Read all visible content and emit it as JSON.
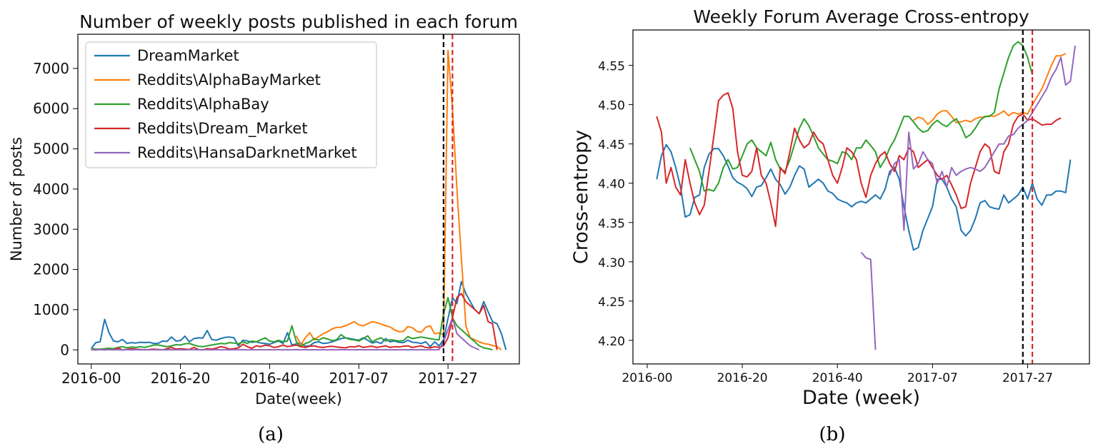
{
  "chart_data": [
    {
      "type": "line",
      "title": "Number of weekly posts published in each forum",
      "xlabel": "Date(week)",
      "ylabel": "Number of posts",
      "caption": "(a)",
      "x_ticks": [
        "2016-00",
        "2016-20",
        "2016-40",
        "2017-07",
        "2017-27"
      ],
      "y_ticks": [
        "0",
        "1000",
        "2000",
        "3000",
        "4000",
        "5000",
        "6000",
        "7000"
      ],
      "ylim": [
        -350,
        7850
      ],
      "x_range_weeks": [
        -3,
        96
      ],
      "x_index_note": "weeks counted from 2016-00; 2017-07 = week 60, 2017-27 = week 80",
      "vlines": [
        {
          "week": 79,
          "color": "#000000"
        },
        {
          "week": 81,
          "color": "#d62728"
        }
      ],
      "legend_position": "top-left",
      "grid": false,
      "series": [
        {
          "name": "DreamMarket",
          "color": "#1f77b4",
          "x_start": 0,
          "values": [
            30,
            180,
            200,
            760,
            420,
            220,
            200,
            260,
            160,
            180,
            170,
            190,
            180,
            190,
            160,
            160,
            220,
            210,
            320,
            220,
            230,
            340,
            200,
            280,
            300,
            290,
            480,
            260,
            240,
            280,
            310,
            320,
            300,
            100,
            240,
            220,
            190,
            200,
            170,
            160,
            140,
            180,
            220,
            160,
            430,
            120,
            150,
            170,
            90,
            100,
            180,
            200,
            160,
            170,
            200,
            240,
            280,
            300,
            280,
            260,
            240,
            300,
            240,
            170,
            200,
            160,
            280,
            200,
            220,
            190,
            180,
            240,
            190,
            180,
            160,
            200,
            80,
            200,
            100,
            250,
            780,
            1300,
            1150,
            1700,
            1400,
            1200,
            1000,
            900,
            1200,
            950,
            700,
            650,
            400,
            0
          ]
        },
        {
          "name": "Reddits\\AlphaBayMarket",
          "color": "#ff7f0e",
          "x_start": 46,
          "values": [
            350,
            120,
            300,
            430,
            250,
            330,
            400,
            450,
            520,
            560,
            560,
            600,
            650,
            700,
            620,
            600,
            650,
            700,
            680,
            640,
            600,
            570,
            500,
            450,
            460,
            580,
            550,
            460,
            440,
            560,
            600,
            400,
            420,
            380,
            7450,
            6000,
            4000,
            2300,
            600,
            300,
            250,
            200,
            160,
            140,
            110,
            80,
            0
          ]
        },
        {
          "name": "Reddits\\AlphaBay",
          "color": "#2ca02c",
          "x_start": 0,
          "values": [
            30,
            20,
            20,
            30,
            40,
            30,
            60,
            80,
            50,
            70,
            60,
            80,
            60,
            90,
            120,
            120,
            100,
            80,
            100,
            130,
            120,
            150,
            160,
            120,
            90,
            80,
            100,
            120,
            140,
            160,
            150,
            180,
            170,
            150,
            200,
            160,
            220,
            200,
            250,
            300,
            220,
            200,
            240,
            200,
            220,
            600,
            200,
            80,
            160,
            200,
            280,
            240,
            300,
            270,
            230,
            250,
            380,
            300,
            260,
            250,
            220,
            280,
            350,
            200,
            260,
            300,
            220,
            250,
            240,
            220,
            230,
            330,
            280,
            300,
            320,
            300,
            280,
            260,
            250,
            900,
            1300,
            800,
            600,
            500,
            400,
            300,
            200,
            100,
            50,
            30,
            0
          ]
        },
        {
          "name": "Reddits\\Dream_Market",
          "color": "#d62728",
          "x_start": 0,
          "values": [
            10,
            0,
            10,
            0,
            10,
            0,
            50,
            0,
            10,
            30,
            20,
            10,
            0,
            10,
            20,
            10,
            0,
            30,
            60,
            20,
            30,
            20,
            10,
            60,
            10,
            0,
            30,
            20,
            40,
            80,
            60,
            20,
            30,
            50,
            140,
            80,
            40,
            100,
            80,
            120,
            100,
            60,
            80,
            120,
            80,
            100,
            120,
            80,
            60,
            90,
            100,
            70,
            60,
            80,
            90,
            70,
            60,
            50,
            80,
            70,
            100,
            60,
            80,
            90,
            60,
            80,
            100,
            60,
            80,
            70,
            90,
            100,
            60,
            80,
            100,
            60,
            50,
            80,
            60,
            100,
            300,
            800,
            1300,
            1400,
            1200,
            1100,
            1000,
            900,
            1100,
            700,
            650,
            0
          ]
        },
        {
          "name": "Reddits\\HansaDarknetMarket",
          "color": "#9467bd",
          "x_start": 0,
          "values": [
            0,
            0,
            5,
            0,
            5,
            0,
            5,
            0,
            5,
            0,
            5,
            0,
            5,
            0,
            5,
            0,
            5,
            0,
            5,
            0,
            5,
            0,
            5,
            0,
            5,
            0,
            5,
            0,
            5,
            0,
            5,
            0,
            5,
            0,
            5,
            0,
            5,
            0,
            5,
            0,
            5,
            0,
            5,
            0,
            5,
            0,
            5,
            0,
            5,
            0,
            5,
            0,
            5,
            0,
            5,
            0,
            5,
            0,
            5,
            0,
            5,
            0,
            5,
            0,
            5,
            0,
            5,
            0,
            5,
            0,
            5,
            0,
            5,
            0,
            5,
            0,
            5,
            0,
            5,
            200,
            500,
            800,
            400,
            300,
            200,
            100,
            50,
            0
          ]
        }
      ]
    },
    {
      "type": "line",
      "title": "Weekly Forum Average Cross-entropy",
      "xlabel": "Date (week)",
      "ylabel": "Cross-entropy",
      "caption": "(b)",
      "x_ticks": [
        "2016-00",
        "2016-20",
        "2016-40",
        "2017-07",
        "2017-27"
      ],
      "y_ticks": [
        "4.20",
        "4.25",
        "4.30",
        "4.35",
        "4.40",
        "4.45",
        "4.50",
        "4.55"
      ],
      "ylim": [
        4.17,
        4.595
      ],
      "x_range_weeks": [
        -3,
        93
      ],
      "vlines": [
        {
          "week": 79,
          "color": "#000000"
        },
        {
          "week": 81,
          "color": "#d62728"
        }
      ],
      "legend_position": "none",
      "grid": false,
      "series": [
        {
          "color": "#1f77b4",
          "x_start": 2,
          "values": [
            4.405,
            4.435,
            4.449,
            4.44,
            4.42,
            4.395,
            4.357,
            4.36,
            4.382,
            4.385,
            4.42,
            4.437,
            4.444,
            4.444,
            4.435,
            4.422,
            4.407,
            4.401,
            4.398,
            4.393,
            4.383,
            4.395,
            4.397,
            4.407,
            4.418,
            4.405,
            4.398,
            4.386,
            4.395,
            4.41,
            4.422,
            4.418,
            4.395,
            4.4,
            4.405,
            4.4,
            4.39,
            4.387,
            4.38,
            4.377,
            4.375,
            4.37,
            4.375,
            4.377,
            4.375,
            4.38,
            4.385,
            4.38,
            4.392,
            4.415,
            4.42,
            4.405,
            4.37,
            4.34,
            4.315,
            4.318,
            4.34,
            4.355,
            4.37,
            4.405,
            4.405,
            4.395,
            4.38,
            4.37,
            4.34,
            4.333,
            4.34,
            4.355,
            4.375,
            4.378,
            4.37,
            4.368,
            4.367,
            4.385,
            4.375,
            4.38,
            4.385,
            4.395,
            4.38,
            4.4,
            4.38,
            4.372,
            4.385,
            4.385,
            4.39,
            4.39,
            4.388,
            4.43
          ]
        },
        {
          "color": "#ff7f0e",
          "x_start": 56,
          "values": [
            4.48,
            4.484,
            4.482,
            4.475,
            4.48,
            4.488,
            4.492,
            4.492,
            4.485,
            4.477,
            4.478,
            4.48,
            4.478,
            4.482,
            4.484,
            4.484,
            4.486,
            4.485,
            4.488,
            4.492,
            4.486,
            4.49,
            4.488,
            4.49,
            4.488,
            4.5,
            4.51,
            4.52,
            4.535,
            4.55,
            4.562,
            4.562,
            4.565
          ]
        },
        {
          "color": "#2ca02c",
          "x_start": 9,
          "values": [
            4.445,
            4.43,
            4.415,
            4.39,
            4.392,
            4.39,
            4.4,
            4.42,
            4.43,
            4.418,
            4.42,
            4.435,
            4.45,
            4.455,
            4.445,
            4.44,
            4.435,
            4.452,
            4.43,
            4.418,
            4.415,
            4.43,
            4.45,
            4.47,
            4.482,
            4.473,
            4.46,
            4.445,
            4.437,
            4.43,
            4.428,
            4.425,
            4.44,
            4.438,
            4.43,
            4.445,
            4.445,
            4.455,
            4.448,
            4.44,
            4.42,
            4.43,
            4.445,
            4.455,
            4.47,
            4.485,
            4.485,
            4.478,
            4.47,
            4.465,
            4.467,
            4.475,
            4.48,
            4.475,
            4.472,
            4.478,
            4.482,
            4.472,
            4.458,
            4.462,
            4.47,
            4.48,
            4.485,
            4.485,
            4.49,
            4.52,
            4.54,
            4.56,
            4.575,
            4.58,
            4.575,
            4.56,
            4.538
          ]
        },
        {
          "color": "#d62728",
          "x_start": 2,
          "values": [
            4.485,
            4.465,
            4.4,
            4.42,
            4.395,
            4.385,
            4.43,
            4.4,
            4.375,
            4.36,
            4.372,
            4.415,
            4.46,
            4.505,
            4.512,
            4.515,
            4.495,
            4.44,
            4.41,
            4.408,
            4.415,
            4.445,
            4.41,
            4.4,
            4.375,
            4.345,
            4.42,
            4.412,
            4.44,
            4.47,
            4.455,
            4.445,
            4.45,
            4.465,
            4.455,
            4.45,
            4.43,
            4.41,
            4.4,
            4.42,
            4.445,
            4.44,
            4.43,
            4.4,
            4.382,
            4.41,
            4.425,
            4.435,
            4.44,
            4.425,
            4.415,
            4.435,
            4.43,
            4.445,
            4.44,
            4.42,
            4.425,
            4.43,
            4.42,
            4.41,
            4.405,
            4.41,
            4.398,
            4.385,
            4.368,
            4.37,
            4.4,
            4.42,
            4.44,
            4.45,
            4.445,
            4.415,
            4.412,
            4.44,
            4.45,
            4.475,
            4.485,
            4.488,
            4.48,
            4.482,
            4.478,
            4.474,
            4.475,
            4.475,
            4.48,
            4.483
          ]
        },
        {
          "color": "#9467bd",
          "x_start": 45,
          "values": [
            4.312,
            4.305,
            4.303,
            4.188
          ]
        },
        {
          "color": "#9467bd",
          "x_start": 51,
          "values": [
            4.41,
            4.425,
            4.43,
            4.34,
            4.465,
            4.418,
            4.425,
            4.44,
            4.43,
            4.425,
            4.4,
            4.415,
            4.395,
            4.42,
            4.41,
            4.415,
            4.418,
            4.42,
            4.418,
            4.415,
            4.42,
            4.43,
            4.44,
            4.45,
            4.45,
            4.46,
            4.462,
            4.47,
            4.475,
            4.48,
            4.49,
            4.5,
            4.51,
            4.52,
            4.535,
            4.545,
            4.56,
            4.525,
            4.53,
            4.575
          ]
        }
      ]
    }
  ]
}
